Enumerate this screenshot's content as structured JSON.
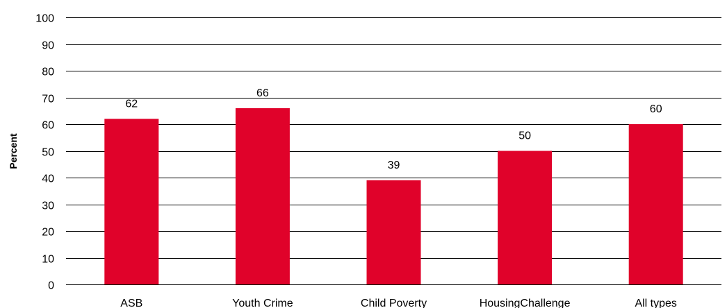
{
  "chart_data": {
    "type": "bar",
    "categories": [
      "ASB",
      "Youth Crime",
      "Child Poverty",
      "HousingChallenge",
      "All types"
    ],
    "values": [
      62,
      66,
      39,
      50,
      60
    ],
    "ylabel": "Percent",
    "xlabel": "",
    "ylim": [
      0,
      100
    ],
    "yticks": [
      0,
      10,
      20,
      30,
      40,
      50,
      60,
      70,
      80,
      90,
      100
    ],
    "grid": true,
    "bar_color": "#e0022a",
    "show_data_labels": true
  }
}
